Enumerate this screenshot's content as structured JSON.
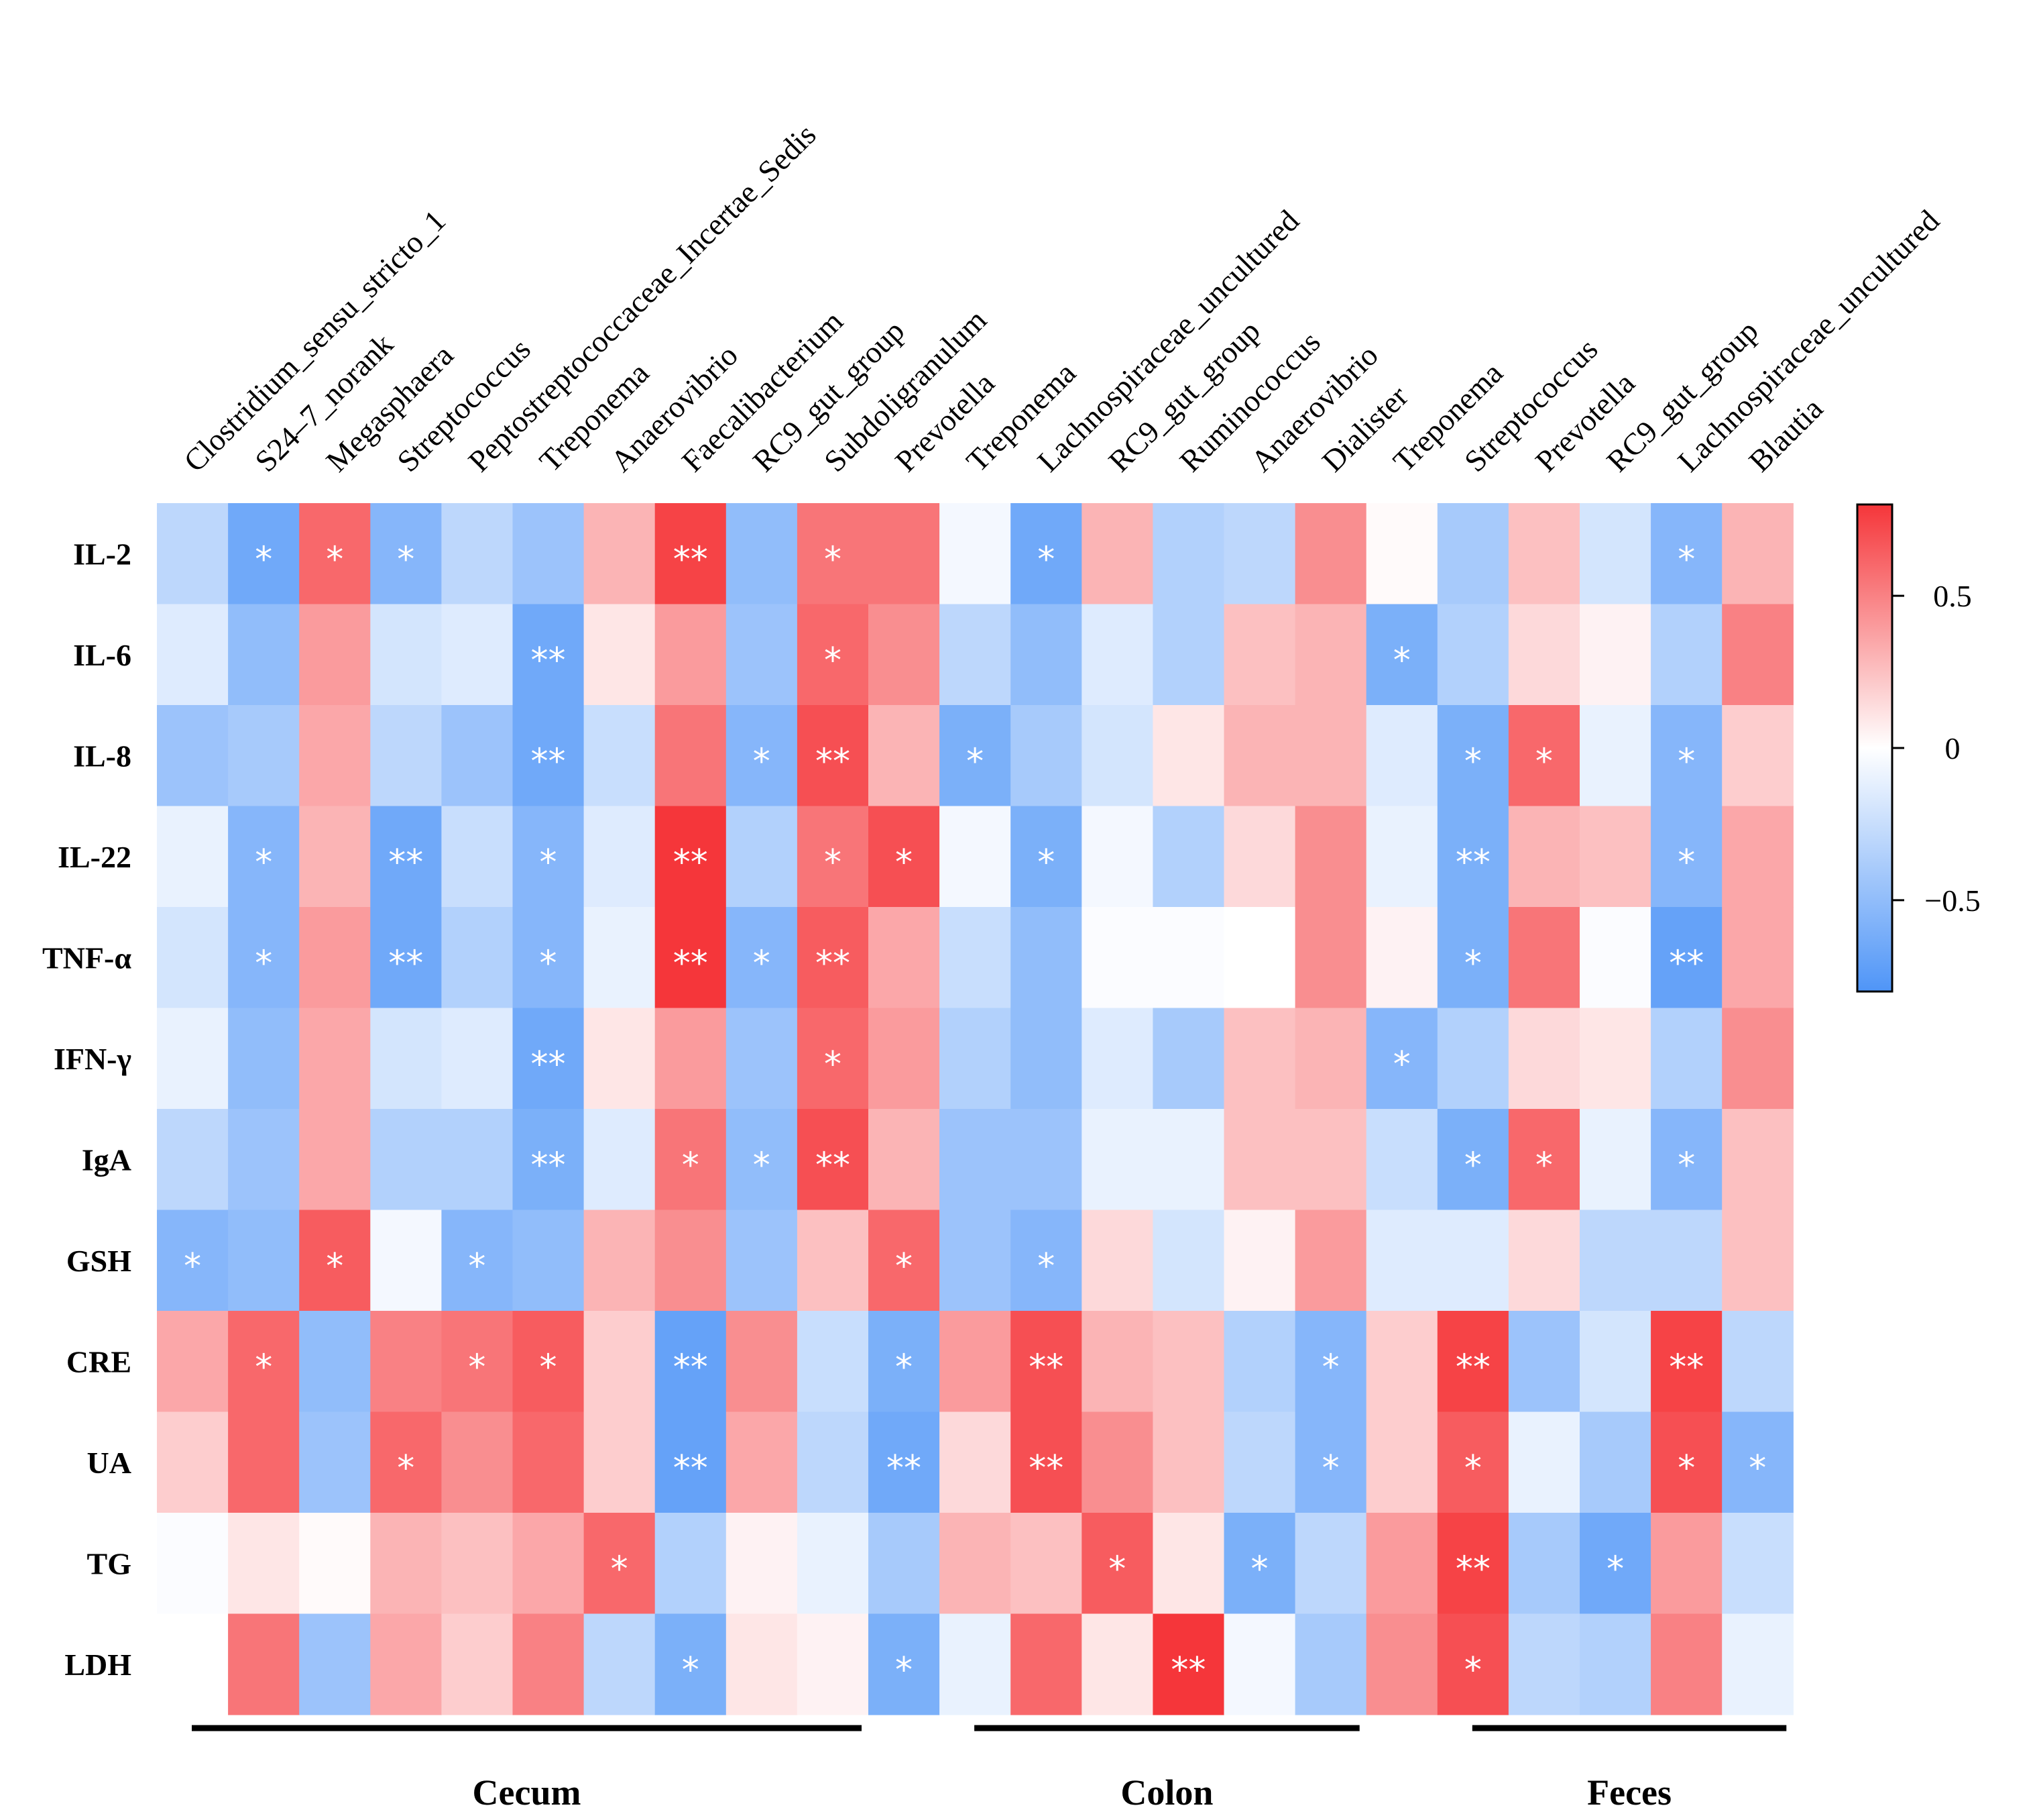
{
  "chart_data": {
    "type": "heatmap",
    "title": "",
    "rows": [
      "IL-2",
      "IL-6",
      "IL-8",
      "IL-22",
      "TNF-α",
      "IFN-γ",
      "IgA",
      "GSH",
      "CRE",
      "UA",
      "TG",
      "LDH"
    ],
    "columns": [
      "Clostridium_sensu_stricto_1",
      "S24–7_norank",
      "Megasphaera",
      "Streptococcus",
      "Peptostreptococcaceae_Incertae_Sedis",
      "Treponema",
      "Anaerovibrio",
      "Faecalibacterium",
      "RC9_gut_group",
      "Subdoligranulum",
      "Prevotella",
      "Treponema",
      "Lachnospiraceae_uncultured",
      "RC9_gut_group",
      "Ruminococcus",
      "Anaerovibrio",
      "Dialister",
      "Treponema",
      "Streptococcus",
      "Prevotella",
      "RC9_gut_group",
      "Lachnospiraceae_uncultured",
      "Blautia"
    ],
    "groups": [
      {
        "name": "Cecum",
        "start": 0,
        "end": 9
      },
      {
        "name": "Colon",
        "start": 11,
        "end": 16
      },
      {
        "name": "Feces",
        "start": 18,
        "end": 22
      }
    ],
    "values": [
      [
        -0.3,
        -0.65,
        0.6,
        -0.55,
        -0.3,
        -0.45,
        0.3,
        0.75,
        -0.5,
        0.55,
        0.55,
        -0.05,
        -0.65,
        0.3,
        -0.35,
        -0.3,
        0.45,
        0.02,
        -0.4,
        0.25,
        -0.2,
        -0.55,
        0.3
      ],
      [
        -0.15,
        -0.5,
        0.4,
        -0.2,
        -0.15,
        -0.65,
        0.1,
        0.4,
        -0.45,
        0.6,
        0.45,
        -0.3,
        -0.5,
        -0.15,
        -0.35,
        0.25,
        0.3,
        -0.6,
        -0.35,
        0.15,
        0.05,
        -0.35,
        0.5
      ],
      [
        -0.45,
        -0.4,
        0.35,
        -0.3,
        -0.45,
        -0.65,
        -0.25,
        0.55,
        -0.55,
        0.7,
        0.3,
        -0.6,
        -0.4,
        -0.2,
        0.1,
        0.3,
        0.3,
        -0.15,
        -0.6,
        0.6,
        -0.1,
        -0.55,
        0.2
      ],
      [
        -0.1,
        -0.55,
        0.3,
        -0.65,
        -0.25,
        -0.55,
        -0.15,
        0.8,
        -0.35,
        0.55,
        0.7,
        -0.05,
        -0.6,
        -0.05,
        -0.35,
        0.15,
        0.45,
        -0.1,
        -0.6,
        0.3,
        0.25,
        -0.55,
        0.35
      ],
      [
        -0.2,
        -0.55,
        0.4,
        -0.65,
        -0.35,
        -0.55,
        -0.1,
        0.8,
        -0.55,
        0.65,
        0.35,
        -0.25,
        -0.5,
        -0.02,
        -0.02,
        0.0,
        0.45,
        0.05,
        -0.6,
        0.55,
        -0.02,
        -0.7,
        0.35
      ],
      [
        -0.1,
        -0.5,
        0.35,
        -0.2,
        -0.15,
        -0.65,
        0.1,
        0.4,
        -0.45,
        0.6,
        0.4,
        -0.35,
        -0.5,
        -0.15,
        -0.4,
        0.25,
        0.3,
        -0.55,
        -0.35,
        0.15,
        0.1,
        -0.35,
        0.45
      ],
      [
        -0.3,
        -0.45,
        0.35,
        -0.35,
        -0.35,
        -0.6,
        -0.15,
        0.55,
        -0.5,
        0.7,
        0.3,
        -0.45,
        -0.45,
        -0.1,
        -0.1,
        0.25,
        0.25,
        -0.25,
        -0.6,
        0.6,
        -0.1,
        -0.55,
        0.25
      ],
      [
        -0.55,
        -0.5,
        0.65,
        -0.05,
        -0.55,
        -0.5,
        0.3,
        0.45,
        -0.45,
        0.25,
        0.6,
        -0.45,
        -0.55,
        0.15,
        -0.2,
        0.05,
        0.4,
        -0.15,
        -0.15,
        0.15,
        -0.3,
        -0.3,
        0.25
      ],
      [
        0.35,
        0.6,
        -0.5,
        0.5,
        0.55,
        0.65,
        0.2,
        -0.7,
        0.45,
        -0.25,
        -0.6,
        0.4,
        0.7,
        0.3,
        0.25,
        -0.35,
        -0.55,
        0.2,
        0.75,
        -0.45,
        -0.2,
        0.75,
        -0.3
      ],
      [
        0.2,
        0.6,
        -0.45,
        0.6,
        0.45,
        0.6,
        0.2,
        -0.7,
        0.35,
        -0.3,
        -0.65,
        0.15,
        0.7,
        0.45,
        0.25,
        -0.3,
        -0.55,
        0.2,
        0.65,
        -0.1,
        -0.4,
        0.7,
        -0.55
      ],
      [
        -0.02,
        0.1,
        0.02,
        0.3,
        0.25,
        0.35,
        0.6,
        -0.35,
        0.05,
        -0.1,
        -0.4,
        0.3,
        0.25,
        0.65,
        0.1,
        -0.6,
        -0.3,
        0.4,
        0.75,
        -0.4,
        -0.65,
        0.4,
        -0.25
      ],
      [
        0.0,
        0.55,
        -0.45,
        0.35,
        0.2,
        0.5,
        -0.3,
        -0.6,
        0.1,
        0.05,
        -0.6,
        -0.1,
        0.6,
        0.1,
        0.8,
        -0.05,
        -0.4,
        0.45,
        0.7,
        -0.3,
        -0.35,
        0.5,
        -0.1
      ]
    ],
    "significance": [
      [
        "",
        "*",
        "*",
        "*",
        "",
        "",
        "",
        "**",
        "",
        "*",
        "",
        "",
        "*",
        "",
        "",
        "",
        "",
        "",
        "",
        "",
        "",
        "*",
        ""
      ],
      [
        "",
        "",
        "",
        "",
        "",
        "**",
        "",
        "",
        "",
        "*",
        "",
        "",
        "",
        "",
        "",
        "",
        "",
        "*",
        "",
        "",
        "",
        "",
        ""
      ],
      [
        "",
        "",
        "",
        "",
        "",
        "**",
        "",
        "",
        "*",
        "**",
        "",
        "*",
        "",
        "",
        "",
        "",
        "",
        "",
        "*",
        "*",
        "",
        "*",
        ""
      ],
      [
        "",
        "*",
        "",
        "**",
        "",
        "*",
        "",
        "**",
        "",
        "*",
        "*",
        "",
        "*",
        "",
        "",
        "",
        "",
        "",
        "**",
        "",
        "",
        "*",
        ""
      ],
      [
        "",
        "*",
        "",
        "**",
        "",
        "*",
        "",
        "**",
        "*",
        "**",
        "",
        "",
        "",
        "",
        "",
        "",
        "",
        "",
        "*",
        "",
        "",
        "**",
        ""
      ],
      [
        "",
        "",
        "",
        "",
        "",
        "**",
        "",
        "",
        "",
        "*",
        "",
        "",
        "",
        "",
        "",
        "",
        "",
        "*",
        "",
        "",
        "",
        "",
        ""
      ],
      [
        "",
        "",
        "",
        "",
        "",
        "**",
        "",
        "*",
        "*",
        "**",
        "",
        "",
        "",
        "",
        "",
        "",
        "",
        "",
        "*",
        "*",
        "",
        "*",
        ""
      ],
      [
        "*",
        "",
        "*",
        "",
        "*",
        "",
        "",
        "",
        "",
        "",
        "*",
        "",
        "*",
        "",
        "",
        "",
        "",
        "",
        "",
        "",
        "",
        "",
        ""
      ],
      [
        "",
        "*",
        "",
        "",
        "*",
        "*",
        "",
        "**",
        "",
        "",
        "*",
        "",
        "**",
        "",
        "",
        "",
        "*",
        "",
        "**",
        "",
        "",
        "**",
        ""
      ],
      [
        "",
        "",
        "",
        "*",
        "",
        "",
        "",
        "**",
        "",
        "",
        "**",
        "",
        "**",
        "",
        "",
        "",
        "*",
        "",
        "*",
        "",
        "",
        "*",
        "*"
      ],
      [
        "",
        "",
        "",
        "",
        "",
        "",
        "*",
        "",
        "",
        "",
        "",
        "",
        "",
        "*",
        "",
        "*",
        "",
        "",
        "**",
        "",
        "*",
        "",
        ""
      ],
      [
        "",
        "",
        "",
        "",
        "",
        "",
        "",
        "*",
        "",
        "",
        "*",
        "",
        "",
        "",
        "**",
        "",
        "",
        "",
        "*",
        "",
        "",
        "",
        ""
      ]
    ],
    "colorbar": {
      "min": -0.8,
      "max": 0.8,
      "ticks": [
        "0.5",
        "0",
        "−0.5"
      ],
      "low_color": "#4f95f7",
      "mid_color": "#ffffff",
      "high_color": "#f5363a"
    }
  }
}
